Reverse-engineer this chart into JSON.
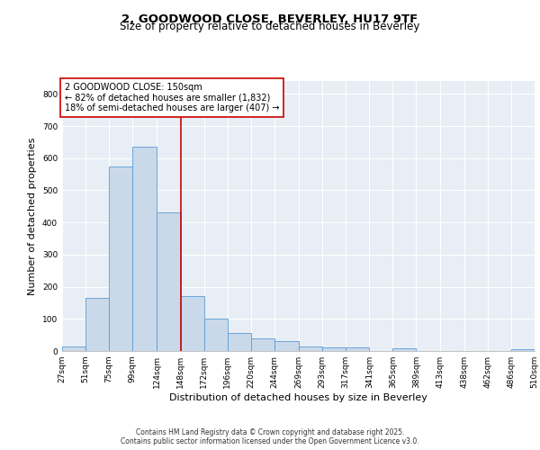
{
  "title1": "2, GOODWOOD CLOSE, BEVERLEY, HU17 9TF",
  "title2": "Size of property relative to detached houses in Beverley",
  "xlabel": "Distribution of detached houses by size in Beverley",
  "ylabel": "Number of detached properties",
  "bin_edges": [
    27,
    51,
    75,
    99,
    124,
    148,
    172,
    196,
    220,
    244,
    269,
    293,
    317,
    341,
    365,
    389,
    413,
    438,
    462,
    486,
    510
  ],
  "bar_heights": [
    15,
    165,
    575,
    635,
    430,
    170,
    100,
    55,
    40,
    30,
    15,
    10,
    10,
    0,
    8,
    0,
    0,
    0,
    0,
    5
  ],
  "bar_facecolor": "#c9d9ea",
  "bar_edgecolor": "#5b9bd5",
  "vline_x": 148,
  "vline_color": "#cc0000",
  "annotation_lines": [
    "2 GOODWOOD CLOSE: 150sqm",
    "← 82% of detached houses are smaller (1,832)",
    "18% of semi-detached houses are larger (407) →"
  ],
  "annotation_box_facecolor": "white",
  "annotation_box_edgecolor": "#cc0000",
  "ylim": [
    0,
    840
  ],
  "yticks": [
    0,
    100,
    200,
    300,
    400,
    500,
    600,
    700,
    800
  ],
  "background_color": "#e8eef5",
  "grid_color": "white",
  "footer_line1": "Contains HM Land Registry data © Crown copyright and database right 2025.",
  "footer_line2": "Contains public sector information licensed under the Open Government Licence v3.0.",
  "title_fontsize": 9.5,
  "subtitle_fontsize": 8.5,
  "tick_fontsize": 6.5,
  "ylabel_fontsize": 8,
  "xlabel_fontsize": 8,
  "annotation_fontsize": 7,
  "footer_fontsize": 5.5
}
